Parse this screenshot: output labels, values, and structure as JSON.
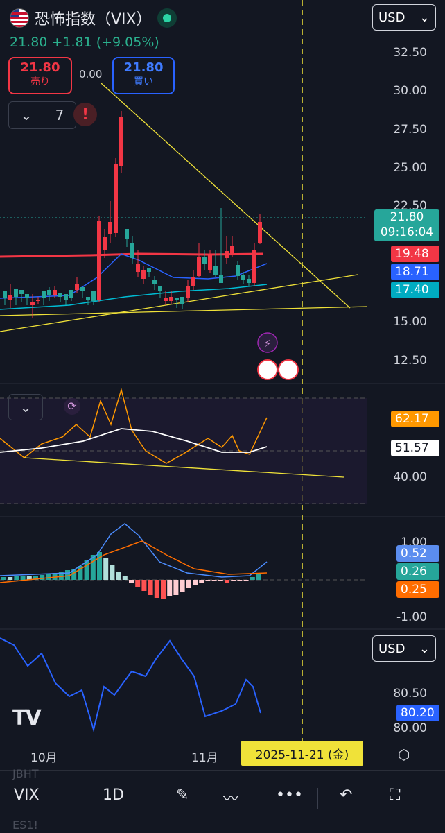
{
  "header": {
    "title": "恐怖指数（VIX）",
    "quote": "21.80  +1.81 (+9.05%)",
    "sell_price": "21.80",
    "sell_label": "売り",
    "spread": "0.00",
    "buy_price": "21.80",
    "buy_label": "買い",
    "indicator_count": "7",
    "alert_icon": "!",
    "currency": "USD"
  },
  "price_axis": {
    "ticks": [
      "32.50",
      "30.00",
      "27.50",
      "25.00",
      "22.50",
      "15.00",
      "12.50"
    ],
    "last_price": "21.80",
    "countdown": "09:16:04",
    "ma_red": "19.48",
    "ma_blue": "18.71",
    "ma_cyan": "17.40"
  },
  "rsi_pane": {
    "value_orange": "62.17",
    "value_white": "51.57",
    "tick_40": "40.00"
  },
  "macd_pane": {
    "tick_top": "1.00",
    "tick_bottom": "-1.00",
    "value_blue": "0.52",
    "value_teal": "0.26",
    "value_orange": "0.25"
  },
  "lower_pane": {
    "currency": "USD",
    "tick_1": "80.50",
    "tick_2": "80.00",
    "value": "80.20"
  },
  "x_axis": {
    "oct": "10月",
    "nov": "11月",
    "cursor_date": "2025-11-21 (金)"
  },
  "toolbar": {
    "symbol": "VIX",
    "interval": "1D",
    "ghost_1": "JBHT",
    "ghost_2": "ES1!"
  },
  "watermark": "TV",
  "colors": {
    "up": "#26a69a",
    "down": "#f23645",
    "trend": "#f0e239",
    "bg": "#131722"
  }
}
